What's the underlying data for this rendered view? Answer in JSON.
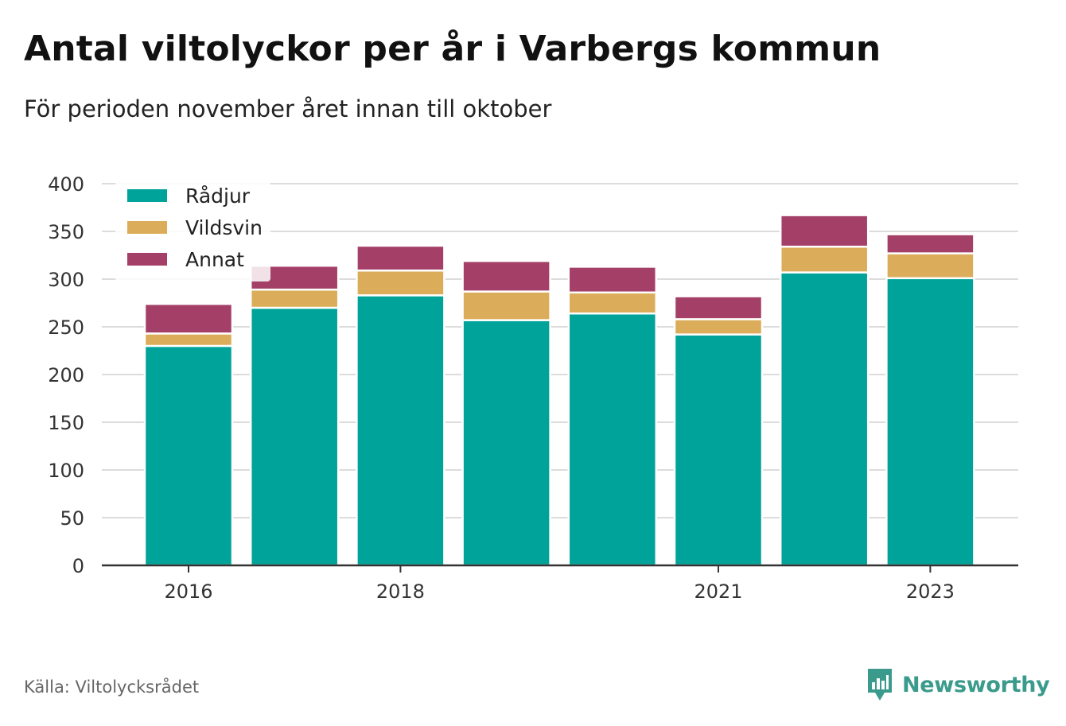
{
  "header": {
    "title": "Antal viltolyckor per år i Varbergs kommun",
    "subtitle": "För perioden november året innan till oktober"
  },
  "footer": {
    "source": "Källa: Viltolycksrådet",
    "brand": "Newsworthy",
    "brand_icon": "newsworthy-logo-icon"
  },
  "colors": {
    "Rådjur": "#00a399",
    "Vildsvin": "#dbac5a",
    "Annat": "#a44067",
    "grid": "#dcdcdc",
    "axis": "#333333",
    "brand": "#3a9b8c"
  },
  "chart_data": {
    "type": "bar",
    "stacked": true,
    "title": "Antal viltolyckor per år i Varbergs kommun",
    "subtitle": "För perioden november året innan till oktober",
    "categories": [
      "2016",
      "2017",
      "2018",
      "2019",
      "2020",
      "2021",
      "2022",
      "2023"
    ],
    "x_tick_labels": [
      "2016",
      "",
      "2018",
      "",
      "",
      "2021",
      "",
      "2023"
    ],
    "series": [
      {
        "name": "Rådjur",
        "values": [
          230,
          270,
          283,
          257,
          264,
          242,
          307,
          301
        ]
      },
      {
        "name": "Vildsvin",
        "values": [
          13,
          19,
          26,
          30,
          22,
          16,
          27,
          26
        ]
      },
      {
        "name": "Annat",
        "values": [
          31,
          25,
          26,
          32,
          27,
          24,
          33,
          20
        ]
      }
    ],
    "ylim": [
      0,
      400
    ],
    "yticks": [
      0,
      50,
      100,
      150,
      200,
      250,
      300,
      350,
      400
    ],
    "grid": true,
    "legend_position": "top-left",
    "xlabel": "",
    "ylabel": ""
  }
}
